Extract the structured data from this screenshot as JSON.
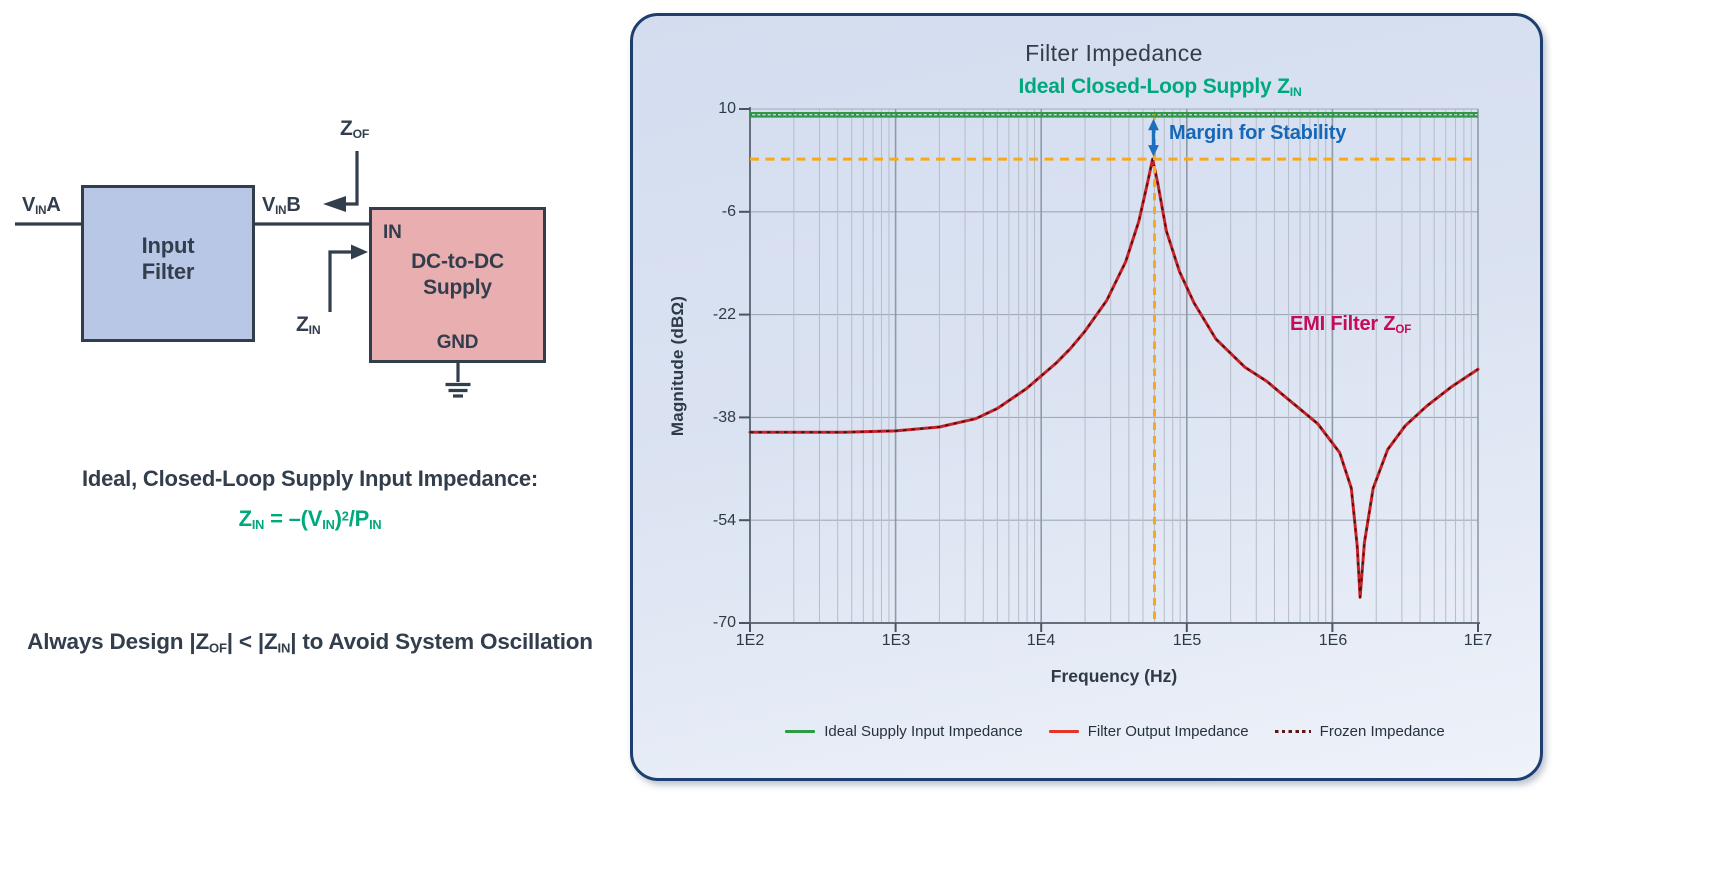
{
  "diagram": {
    "vin_a": {
      "base": "V",
      "sub": "IN",
      "tail": "A"
    },
    "vin_b": {
      "base": "V",
      "sub": "IN",
      "tail": "B"
    },
    "zof": {
      "base": "Z",
      "sub": "OF"
    },
    "zin": {
      "base": "Z",
      "sub": "IN"
    },
    "input_filter": {
      "line1": "Input",
      "line2": "Filter"
    },
    "supply": {
      "pin_in": "IN",
      "line1": "DC-to-DC",
      "line2": "Supply",
      "pin_gnd": "GND"
    },
    "colors": {
      "filter_fill": "#B9C7E6",
      "supply_fill": "#E9AFB0",
      "outline": "#333E4D"
    }
  },
  "equations": {
    "heading": "Ideal, Closed-Loop Supply Input Impedance:",
    "formula": {
      "p1": "Z",
      "s1": "IN",
      "p2": " = –(V",
      "s2": "IN",
      "p3": ")",
      "sup2": "2",
      "p4": "/P",
      "s3": "IN"
    },
    "formula_color": "#00A87E",
    "rule": {
      "p1": "Always Design |Z",
      "s1": "OF",
      "p2": "| < |Z",
      "s2": "IN",
      "p3": "| to Avoid System Oscillation"
    }
  },
  "chart": {
    "title": "Filter Impedance",
    "subtitle": {
      "p1": "Ideal Closed-Loop Supply Z",
      "s1": "IN"
    },
    "subtitle_color": "#00A87E",
    "margin_label": "Margin for Stability",
    "margin_color": "#1568B8",
    "emi_label": {
      "p1": "EMI Filter Z",
      "s1": "OF"
    },
    "emi_color": "#C30D59",
    "xlabel": "Frequency (Hz)",
    "ylabel": "Magnitude (dBΩ)",
    "legend": [
      {
        "name": "Ideal Supply Input Impedance",
        "swatch": "line",
        "color": "#2E9B44"
      },
      {
        "name": "Filter Output Impedance",
        "swatch": "line",
        "color": "#E5352B"
      },
      {
        "name": "Frozen Impedance",
        "swatch": "dotted",
        "color": "#5C1716"
      }
    ]
  },
  "chart_data": {
    "type": "line",
    "title": "Filter Impedance",
    "xlabel": "Frequency (Hz)",
    "ylabel": "Magnitude (dBΩ)",
    "x_scale": "log",
    "xlim": [
      100,
      10000000
    ],
    "ylim": [
      -70,
      10
    ],
    "x_ticks": [
      "1E2",
      "1E3",
      "1E4",
      "1E5",
      "1E6",
      "1E7"
    ],
    "y_ticks": [
      10,
      -6,
      -22,
      -38,
      -54,
      -70
    ],
    "grid": true,
    "legend_position": "bottom",
    "series": [
      {
        "name": "Ideal Supply Input Impedance",
        "color": "#2E9B44",
        "style": "solid",
        "points_logf_db": [
          [
            2.0,
            9.1
          ],
          [
            7.0,
            9.1
          ]
        ]
      },
      {
        "name": "Filter Output Impedance",
        "color": "#CC2128",
        "style": "solid",
        "points_logf_db": [
          [
            2.0,
            -40.3
          ],
          [
            2.35,
            -40.3
          ],
          [
            2.65,
            -40.3
          ],
          [
            3.0,
            -40.1
          ],
          [
            3.3,
            -39.5
          ],
          [
            3.55,
            -38.2
          ],
          [
            3.7,
            -36.6
          ],
          [
            3.9,
            -33.5
          ],
          [
            4.1,
            -29.6
          ],
          [
            4.2,
            -27.3
          ],
          [
            4.3,
            -24.6
          ],
          [
            4.45,
            -19.8
          ],
          [
            4.58,
            -13.8
          ],
          [
            4.67,
            -7.5
          ],
          [
            4.73,
            -1.5
          ],
          [
            4.765,
            2.2
          ],
          [
            4.8,
            -1.5
          ],
          [
            4.86,
            -9.0
          ],
          [
            4.95,
            -15.3
          ],
          [
            5.05,
            -20.2
          ],
          [
            5.2,
            -25.8
          ],
          [
            5.4,
            -30.2
          ],
          [
            5.55,
            -32.4
          ],
          [
            5.65,
            -34.3
          ],
          [
            5.9,
            -39.0
          ],
          [
            6.05,
            -43.5
          ],
          [
            6.13,
            -49.0
          ],
          [
            6.17,
            -58.0
          ],
          [
            6.19,
            -66.0
          ],
          [
            6.22,
            -57.5
          ],
          [
            6.28,
            -49.0
          ],
          [
            6.38,
            -43.0
          ],
          [
            6.5,
            -39.3
          ],
          [
            6.65,
            -36.2
          ],
          [
            6.82,
            -33.2
          ],
          [
            7.0,
            -30.5
          ]
        ]
      },
      {
        "name": "Frozen Impedance",
        "color": "#3F1512",
        "style": "dotted",
        "coincides_with": "Filter Output Impedance"
      }
    ],
    "annotations": {
      "ideal_supply_level_db": 9.1,
      "margin_level_db": 2.2,
      "margin_level_style": "orange dashed horizontal line",
      "resonance_freq_hz": 60000,
      "resonance_marker_style": "orange dashed vertical line",
      "margin_arrow": "blue double-headed arrow between ideal supply level and filter peak at resonance",
      "orange": "#F8A81F",
      "arrow_blue": "#1B6FBF"
    }
  }
}
